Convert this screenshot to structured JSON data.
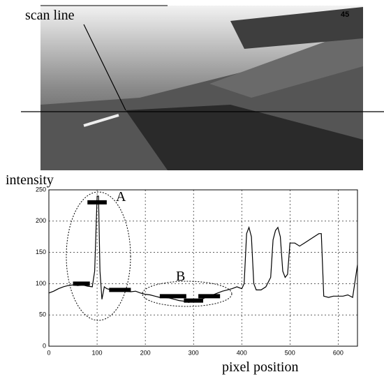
{
  "image": {
    "label": "scan line",
    "counter": "45"
  },
  "chart_data": {
    "type": "line",
    "y_label": "intensity",
    "x_label": "pixel position",
    "x": [
      0,
      10,
      20,
      30,
      40,
      50,
      60,
      70,
      80,
      90,
      95,
      100,
      103,
      106,
      110,
      115,
      120,
      130,
      140,
      150,
      160,
      170,
      180,
      190,
      200,
      210,
      220,
      230,
      240,
      250,
      260,
      270,
      280,
      290,
      300,
      310,
      320,
      330,
      340,
      350,
      360,
      370,
      380,
      390,
      400,
      405,
      410,
      415,
      420,
      425,
      430,
      440,
      450,
      460,
      465,
      470,
      475,
      480,
      485,
      490,
      495,
      500,
      510,
      520,
      530,
      540,
      550,
      560,
      565,
      570,
      580,
      590,
      600,
      610,
      620,
      630,
      640
    ],
    "series": [
      {
        "color": "#000000",
        "values": [
          85,
          88,
          92,
          95,
          97,
          98,
          97,
          98,
          96,
          95,
          120,
          240,
          240,
          120,
          75,
          95,
          92,
          90,
          88,
          90,
          88,
          87,
          88,
          85,
          83,
          82,
          80,
          78,
          78,
          77,
          75,
          73,
          72,
          70,
          72,
          73,
          76,
          80,
          82,
          85,
          88,
          90,
          92,
          95,
          92,
          100,
          180,
          190,
          175,
          100,
          90,
          90,
          95,
          110,
          170,
          185,
          190,
          175,
          120,
          110,
          115,
          165,
          165,
          160,
          165,
          170,
          175,
          180,
          180,
          80,
          78,
          80,
          80,
          80,
          82,
          78,
          130
        ]
      }
    ],
    "xlim": [
      0,
      640
    ],
    "ylim": [
      0,
      250
    ],
    "xticks": [
      0,
      100,
      200,
      300,
      400,
      500,
      600
    ],
    "yticks": [
      0,
      50,
      100,
      150,
      200,
      250
    ],
    "grid": true,
    "segments": [
      {
        "x": [
          50,
          85
        ],
        "y": 100
      },
      {
        "x": [
          80,
          120
        ],
        "y": 230
      },
      {
        "x": [
          125,
          170
        ],
        "y": 90
      },
      {
        "x": [
          230,
          285
        ],
        "y": 80
      },
      {
        "x": [
          280,
          320
        ],
        "y": 73
      },
      {
        "x": [
          310,
          355
        ],
        "y": 80
      }
    ],
    "annotations": [
      "A",
      "B"
    ]
  }
}
